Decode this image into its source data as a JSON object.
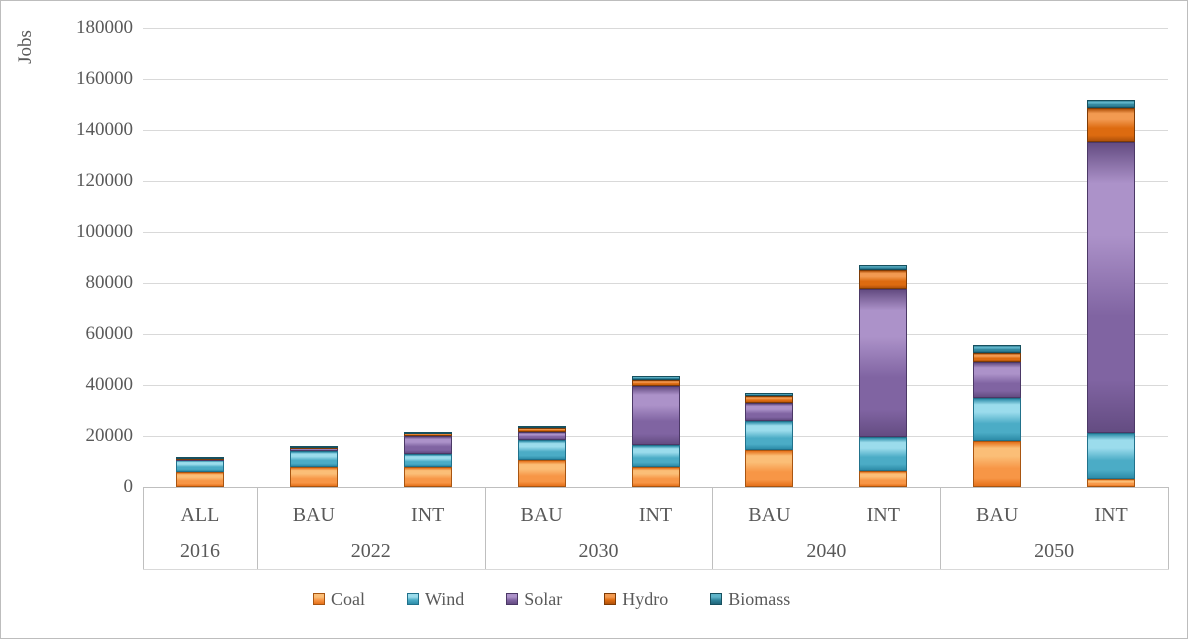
{
  "chart_data": {
    "type": "bar",
    "stacked": true,
    "ylabel": "Jobs",
    "ylim": [
      0,
      180000
    ],
    "ytick_interval": 20000,
    "grid": true,
    "legend_position": "bottom",
    "groups": [
      {
        "year": "2016",
        "scenarios": [
          "ALL"
        ]
      },
      {
        "year": "2022",
        "scenarios": [
          "BAU",
          "INT"
        ]
      },
      {
        "year": "2030",
        "scenarios": [
          "BAU",
          "INT"
        ]
      },
      {
        "year": "2040",
        "scenarios": [
          "BAU",
          "INT"
        ]
      },
      {
        "year": "2050",
        "scenarios": [
          "BAU",
          "INT"
        ]
      }
    ],
    "categories": [
      "ALL 2016",
      "BAU 2022",
      "INT 2022",
      "BAU 2030",
      "INT 2030",
      "BAU 2040",
      "INT 2040",
      "BAU 2050",
      "INT 2050"
    ],
    "series": [
      {
        "name": "Coal",
        "color": "#F79646",
        "light": "#FBBE77",
        "dark": "#E57019",
        "border": "#A85511",
        "values": [
          6000,
          8000,
          7800,
          10500,
          7800,
          14500,
          6200,
          18200,
          3200
        ]
      },
      {
        "name": "Wind",
        "color": "#4BACC6",
        "light": "#9BDCEC",
        "dark": "#2D8CA8",
        "border": "#21718B",
        "values": [
          4500,
          6000,
          5000,
          7800,
          8800,
          11500,
          13500,
          16800,
          18000
        ]
      },
      {
        "name": "Solar",
        "color": "#8064A2",
        "light": "#AC92C9",
        "dark": "#644C82",
        "border": "#4B3866",
        "values": [
          400,
          1300,
          7200,
          3300,
          23000,
          7000,
          58000,
          14200,
          114000
        ]
      },
      {
        "name": "Hydro",
        "color": "#DD6B10",
        "light": "#F29A51",
        "dark": "#B1520A",
        "border": "#7E3B06",
        "values": [
          600,
          500,
          1200,
          1600,
          2500,
          2500,
          7500,
          3300,
          13300
        ]
      },
      {
        "name": "Biomass",
        "color": "#31859C",
        "light": "#5FB4C9",
        "dark": "#20657A",
        "border": "#17505F",
        "values": [
          300,
          300,
          400,
          700,
          1500,
          1200,
          2000,
          3200,
          3200
        ]
      }
    ],
    "colors": {
      "gridline": "#d9d9d9",
      "axis": "#bfbfbf",
      "text": "#595959"
    }
  }
}
